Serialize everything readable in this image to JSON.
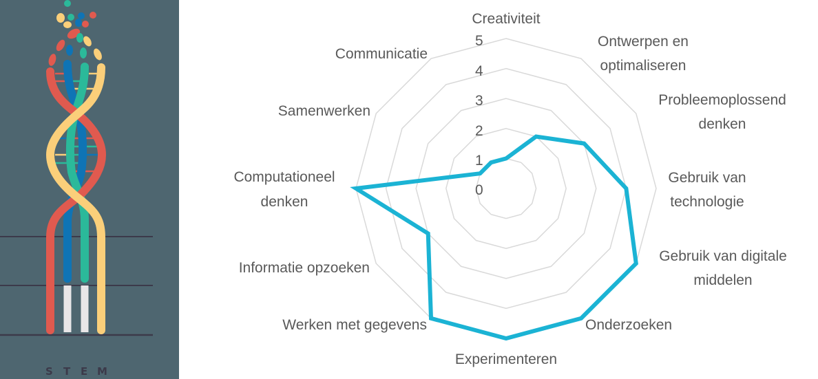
{
  "logo": {
    "text": "S T E M",
    "letters": [
      "S",
      "T",
      "E",
      "M"
    ],
    "background": "#4e6670",
    "strand_colors": {
      "red": "#e05a4f",
      "blue": "#0f74b5",
      "green": "#2bb99a",
      "yellow": "#fbcf7a",
      "white": "#e8e6e8"
    }
  },
  "chart_data": {
    "type": "radar",
    "title": "",
    "categories": [
      "Creativiteit",
      "Ontwerpen en optimaliseren",
      "Probleemoplossend denken",
      "Gebruik van technologie",
      "Gebruik van digitale middelen",
      "Onderzoeken",
      "Experimenteren",
      "Werken met gegevens",
      "Informatie opzoeken",
      "Computationeel denken",
      "Samenwerken",
      "Communicatie"
    ],
    "series": [
      {
        "name": "",
        "color": "#1bb3d4",
        "values": [
          1,
          2,
          3,
          4,
          5,
          5,
          5,
          5,
          3,
          5,
          1,
          1
        ]
      }
    ],
    "radial_ticks": [
      "0",
      "1",
      "2",
      "3",
      "4",
      "5"
    ],
    "range": [
      0,
      5
    ],
    "grid": true,
    "grid_color": "#d9d9d9",
    "legend": "none"
  },
  "labels": {
    "creativiteit": [
      "Creativiteit"
    ],
    "ontwerpen": [
      "Ontwerpen en",
      "optimaliseren"
    ],
    "probleem": [
      "Probleemoplossend",
      "denken"
    ],
    "technologie": [
      "Gebruik van",
      "technologie"
    ],
    "digitaal": [
      "Gebruik van digitale",
      "middelen"
    ],
    "onderzoeken": [
      "Onderzoeken"
    ],
    "experimenteren": [
      "Experimenteren"
    ],
    "gegevens": [
      "Werken met gegevens"
    ],
    "informatie": [
      "Informatie opzoeken"
    ],
    "computationeel": [
      "Computationeel",
      "denken"
    ],
    "samenwerken": [
      "Samenwerken"
    ],
    "communicatie": [
      "Communicatie"
    ]
  }
}
